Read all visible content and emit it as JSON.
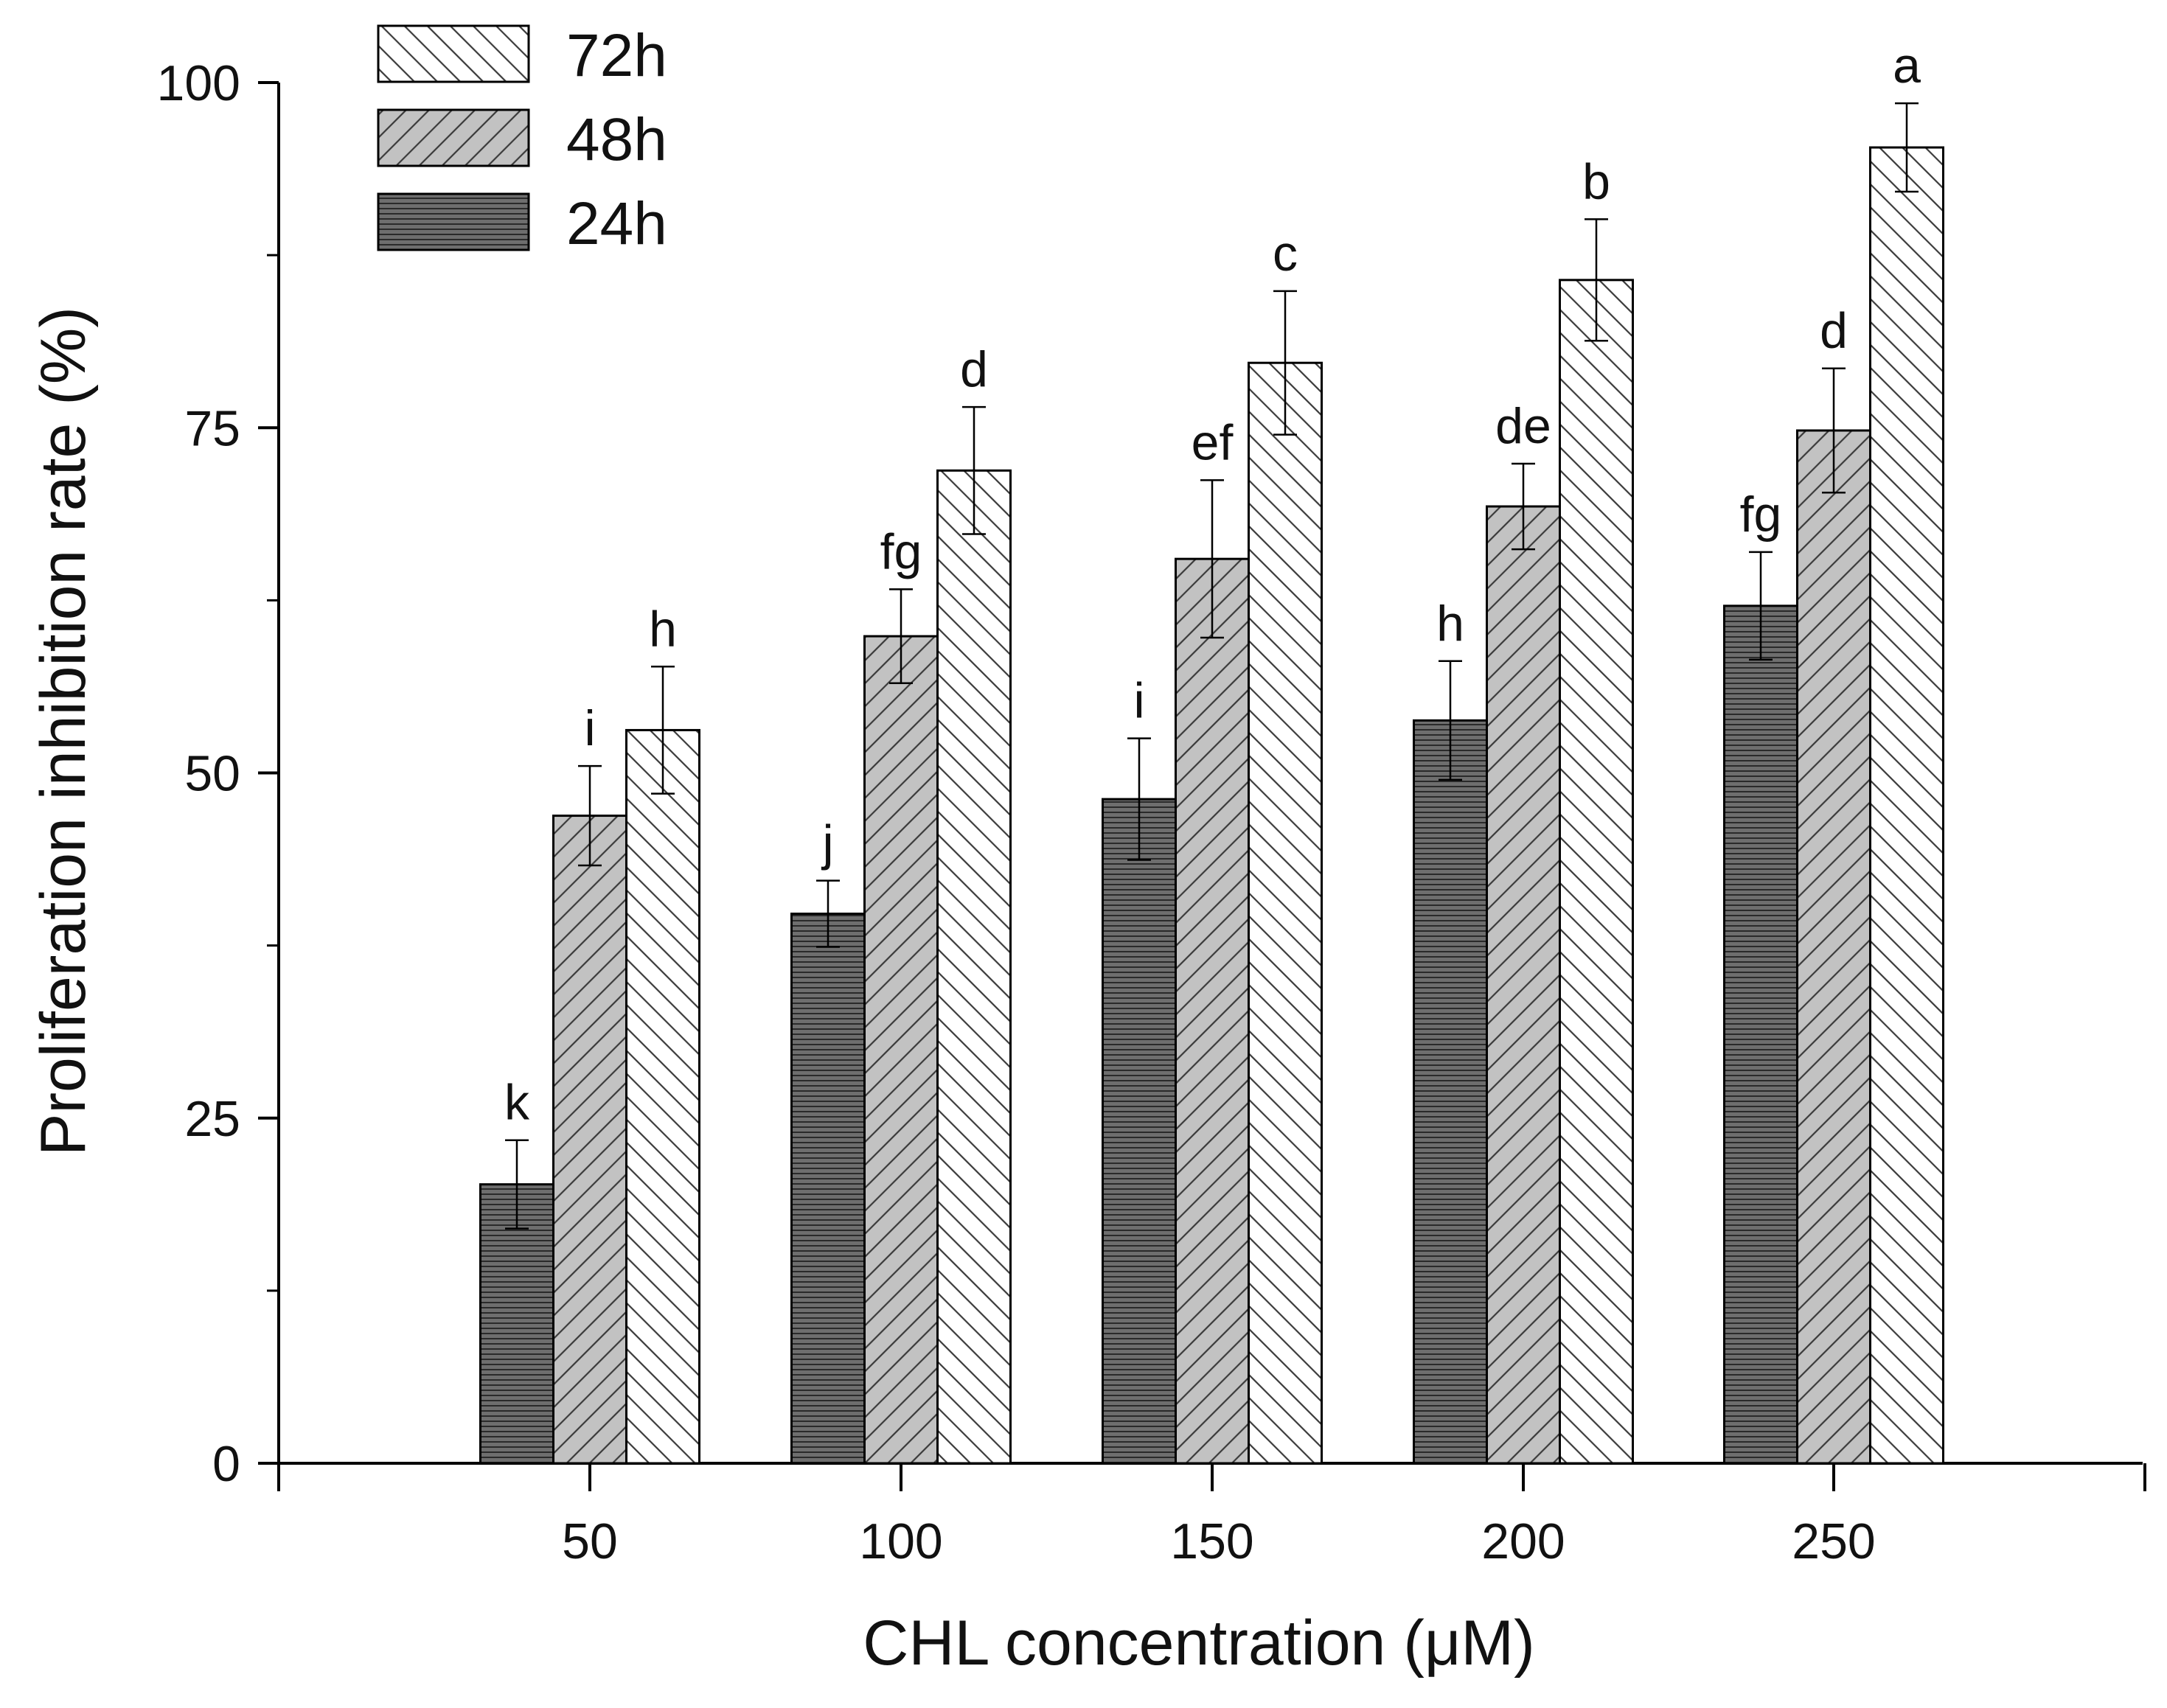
{
  "chart_data": {
    "type": "bar",
    "title": "",
    "xlabel": "CHL concentration (μM)",
    "ylabel": "Proliferation inhibition rate (%)",
    "categories": [
      "50",
      "100",
      "150",
      "200",
      "250"
    ],
    "ylim": [
      0,
      100
    ],
    "yticks": [
      "0",
      "25",
      "50",
      "75",
      "100"
    ],
    "grid": false,
    "legend_position": "top-left",
    "series": [
      {
        "name": "24h",
        "pattern": "horizontal-lines",
        "fill": "#6e6e6e",
        "values": [
          20.2,
          39.8,
          48.1,
          53.8,
          62.1
        ],
        "errors": [
          3.2,
          2.4,
          4.4,
          4.3,
          3.9
        ],
        "letters": [
          "k",
          "j",
          "i",
          "h",
          "fg"
        ]
      },
      {
        "name": "48h",
        "pattern": "backslash-diagonal",
        "fill": "#c2c2c2",
        "values": [
          46.9,
          59.9,
          65.5,
          69.3,
          74.8
        ],
        "errors": [
          3.6,
          3.4,
          5.7,
          3.1,
          4.5
        ],
        "letters": [
          "i",
          "fg",
          "ef",
          "de",
          "d"
        ]
      },
      {
        "name": "72h",
        "pattern": "forward-diagonal",
        "fill": "#ffffff",
        "values": [
          53.1,
          71.9,
          79.7,
          85.7,
          95.3
        ],
        "errors": [
          4.6,
          4.6,
          5.2,
          4.4,
          3.2
        ],
        "letters": [
          "h",
          "d",
          "c",
          "b",
          "a"
        ]
      }
    ],
    "legend_order": [
      "72h",
      "48h",
      "24h"
    ]
  }
}
